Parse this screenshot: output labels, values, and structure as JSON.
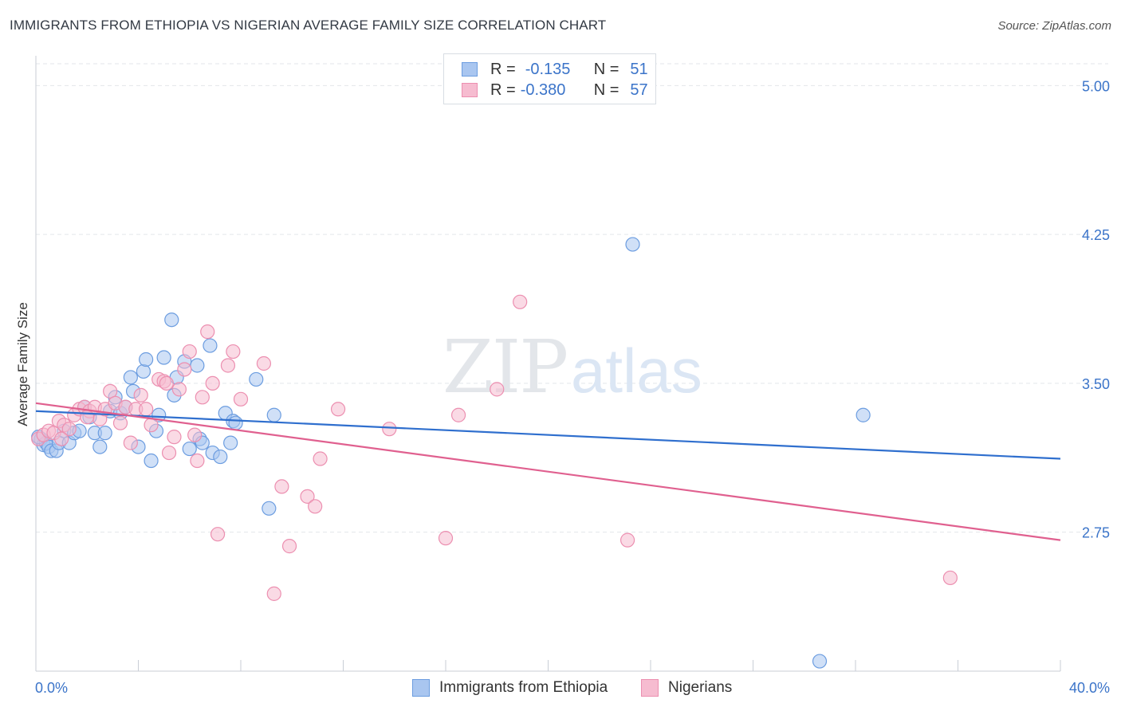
{
  "title": "IMMIGRANTS FROM ETHIOPIA VS NIGERIAN AVERAGE FAMILY SIZE CORRELATION CHART",
  "source": "Source: ZipAtlas.com",
  "watermark": {
    "zip": "ZIP",
    "atlas": "atlas"
  },
  "legend": {
    "row1": {
      "r_label": "R =",
      "r_value": "-0.135",
      "n_label": "N =",
      "n_value": "51"
    },
    "row2": {
      "r_label": "R =",
      "r_value": "-0.380",
      "n_label": "N =",
      "n_value": "57"
    }
  },
  "bottom_legend": {
    "series1": "Immigrants from Ethiopia",
    "series2": "Nigerians"
  },
  "colors": {
    "blue_fill": "#a9c6f0",
    "blue_stroke": "#6c9de0",
    "blue_line": "#2f6fce",
    "pink_fill": "#f6bcd0",
    "pink_stroke": "#ec8fb0",
    "pink_line": "#e0608f",
    "axis_text": "#3b74c9",
    "grid": "#e3e6ea"
  },
  "chart_data": {
    "type": "scatter",
    "title": "IMMIGRANTS FROM ETHIOPIA VS NIGERIAN AVERAGE FAMILY SIZE CORRELATION CHART",
    "xlabel": "",
    "ylabel": "Average Family Size",
    "xlim": [
      0,
      40
    ],
    "ylim": [
      2.05,
      5.15
    ],
    "x_tick_labels": [
      "0.0%",
      "40.0%"
    ],
    "y_ticks": [
      2.75,
      3.5,
      4.25,
      5.0
    ],
    "y_tick_labels": [
      "2.75",
      "3.50",
      "4.25",
      "5.00"
    ],
    "grid": true,
    "series": [
      {
        "name": "Immigrants from Ethiopia",
        "points": [
          [
            0.2,
            3.22
          ],
          [
            0.3,
            3.19
          ],
          [
            0.4,
            3.2
          ],
          [
            0.5,
            3.18
          ],
          [
            0.6,
            3.16
          ],
          [
            0.8,
            3.16
          ],
          [
            0.9,
            3.2
          ],
          [
            1.1,
            3.26
          ],
          [
            1.3,
            3.2
          ],
          [
            1.5,
            3.25
          ],
          [
            1.7,
            3.26
          ],
          [
            1.9,
            3.38
          ],
          [
            2.1,
            3.33
          ],
          [
            2.3,
            3.25
          ],
          [
            2.5,
            3.18
          ],
          [
            2.7,
            3.25
          ],
          [
            2.9,
            3.36
          ],
          [
            3.1,
            3.43
          ],
          [
            3.3,
            3.35
          ],
          [
            3.5,
            3.38
          ],
          [
            3.7,
            3.53
          ],
          [
            3.8,
            3.46
          ],
          [
            4.0,
            3.18
          ],
          [
            4.2,
            3.56
          ],
          [
            4.3,
            3.62
          ],
          [
            4.5,
            3.11
          ],
          [
            4.7,
            3.26
          ],
          [
            4.8,
            3.34
          ],
          [
            5.0,
            3.63
          ],
          [
            5.3,
            3.82
          ],
          [
            5.4,
            3.44
          ],
          [
            5.5,
            3.53
          ],
          [
            5.8,
            3.61
          ],
          [
            6.0,
            3.17
          ],
          [
            6.3,
            3.59
          ],
          [
            6.4,
            3.22
          ],
          [
            6.5,
            3.2
          ],
          [
            6.8,
            3.69
          ],
          [
            6.9,
            3.15
          ],
          [
            7.2,
            3.13
          ],
          [
            7.4,
            3.35
          ],
          [
            7.6,
            3.2
          ],
          [
            7.7,
            3.31
          ],
          [
            7.8,
            3.3
          ],
          [
            8.6,
            3.52
          ],
          [
            9.1,
            2.87
          ],
          [
            9.3,
            3.34
          ],
          [
            23.3,
            4.2
          ],
          [
            30.6,
            2.1
          ],
          [
            32.3,
            3.34
          ],
          [
            0.1,
            3.23
          ]
        ],
        "trend": [
          [
            0,
            3.36
          ],
          [
            40,
            3.12
          ]
        ]
      },
      {
        "name": "Nigerians",
        "points": [
          [
            0.1,
            3.22
          ],
          [
            0.3,
            3.24
          ],
          [
            0.5,
            3.26
          ],
          [
            0.7,
            3.25
          ],
          [
            0.9,
            3.31
          ],
          [
            1.1,
            3.29
          ],
          [
            1.3,
            3.27
          ],
          [
            1.5,
            3.34
          ],
          [
            1.7,
            3.37
          ],
          [
            1.9,
            3.38
          ],
          [
            2.1,
            3.36
          ],
          [
            2.3,
            3.38
          ],
          [
            2.5,
            3.32
          ],
          [
            2.7,
            3.37
          ],
          [
            2.9,
            3.46
          ],
          [
            3.1,
            3.4
          ],
          [
            3.3,
            3.3
          ],
          [
            3.5,
            3.38
          ],
          [
            3.7,
            3.2
          ],
          [
            3.9,
            3.37
          ],
          [
            4.1,
            3.44
          ],
          [
            4.3,
            3.37
          ],
          [
            4.5,
            3.29
          ],
          [
            4.8,
            3.52
          ],
          [
            5.0,
            3.51
          ],
          [
            5.1,
            3.5
          ],
          [
            5.2,
            3.15
          ],
          [
            5.4,
            3.23
          ],
          [
            5.6,
            3.47
          ],
          [
            5.8,
            3.57
          ],
          [
            6.0,
            3.66
          ],
          [
            6.2,
            3.24
          ],
          [
            6.3,
            3.11
          ],
          [
            6.5,
            3.43
          ],
          [
            6.7,
            3.76
          ],
          [
            6.9,
            3.5
          ],
          [
            7.1,
            2.74
          ],
          [
            7.5,
            3.59
          ],
          [
            7.7,
            3.66
          ],
          [
            8.0,
            3.42
          ],
          [
            8.9,
            3.6
          ],
          [
            9.3,
            2.44
          ],
          [
            9.6,
            2.98
          ],
          [
            9.9,
            2.68
          ],
          [
            10.6,
            2.93
          ],
          [
            10.9,
            2.88
          ],
          [
            11.1,
            3.12
          ],
          [
            11.8,
            3.37
          ],
          [
            13.8,
            3.27
          ],
          [
            16.0,
            2.72
          ],
          [
            16.5,
            3.34
          ],
          [
            18.0,
            3.47
          ],
          [
            18.9,
            3.91
          ],
          [
            23.1,
            2.71
          ],
          [
            35.7,
            2.52
          ],
          [
            1.0,
            3.22
          ],
          [
            2.0,
            3.33
          ]
        ],
        "trend": [
          [
            0,
            3.4
          ],
          [
            40,
            2.71
          ]
        ]
      }
    ]
  }
}
